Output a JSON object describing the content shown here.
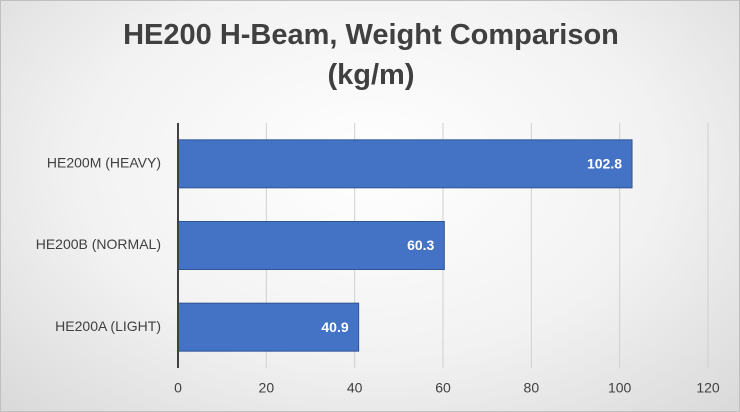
{
  "chart_data": {
    "type": "barh",
    "title": "HE200 H-Beam, Weight Comparison (kg/m)",
    "categories": [
      "HE200M (HEAVY)",
      "HE200B (NORMAL)",
      "HE200A (LIGHT)"
    ],
    "values": [
      102.8,
      60.3,
      40.9
    ],
    "color": "#4472c4",
    "xlim": [
      0,
      120
    ],
    "xticks": [
      0,
      20,
      40,
      60,
      80,
      100,
      120
    ],
    "grid": true
  }
}
